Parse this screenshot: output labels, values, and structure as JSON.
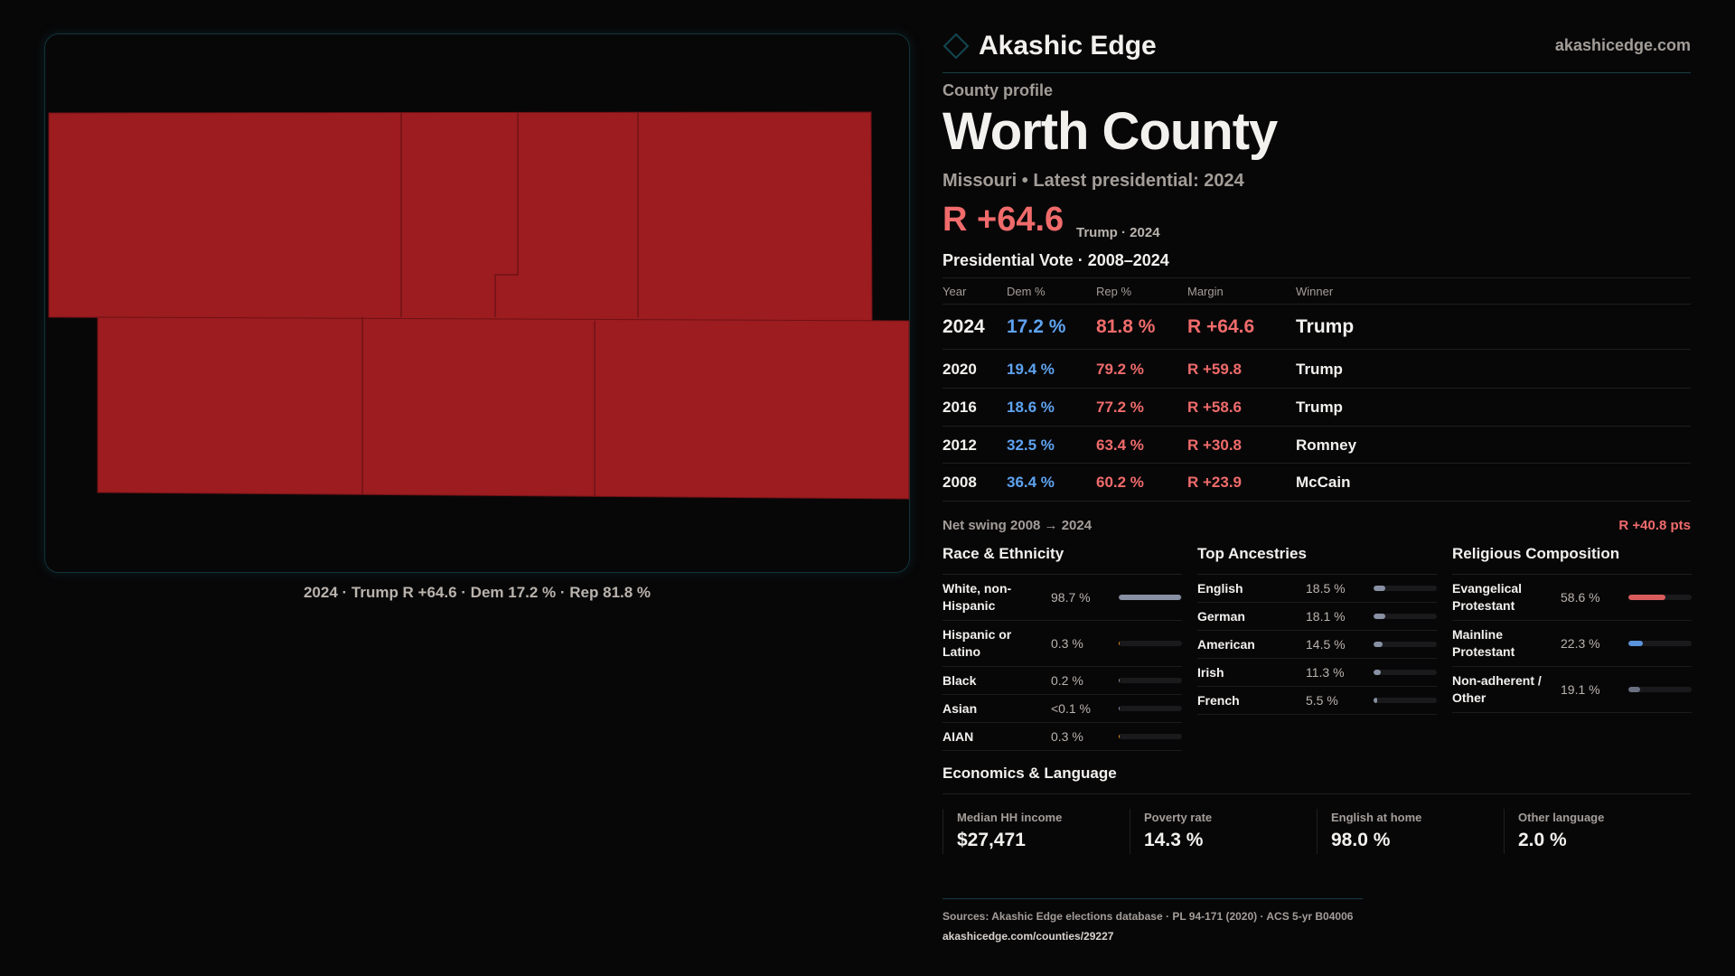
{
  "brand": {
    "name": "Akashic Edge",
    "site": "akashicedge.com",
    "accent": "#134650"
  },
  "map": {
    "fill": "#9c1c20",
    "caption": "2024 · Trump R +64.6 · Dem 17.2 % · Rep 81.8 %"
  },
  "profile": {
    "label": "County profile",
    "title": "Worth County",
    "subtitle": "Missouri • Latest presidential: 2024",
    "margin": "R +64.6",
    "winner": "Trump · 2024"
  },
  "vote": {
    "title": "Presidential Vote · 2008–2024",
    "headers": [
      "Year",
      "Dem %",
      "Rep %",
      "Margin",
      "Winner"
    ],
    "rows": [
      [
        "2024",
        "17.2 %",
        "81.8 %",
        "R +64.6",
        "Trump"
      ],
      [
        "2020",
        "19.4 %",
        "79.2 %",
        "R +59.8",
        "Trump"
      ],
      [
        "2016",
        "18.6 %",
        "77.2 %",
        "R +58.6",
        "Trump"
      ],
      [
        "2012",
        "32.5 %",
        "63.4 %",
        "R +30.8",
        "Romney"
      ],
      [
        "2008",
        "36.4 %",
        "60.2 %",
        "R +23.9",
        "McCain"
      ]
    ],
    "swing_label": "Net swing 2008 → 2024",
    "swing_value": "R +40.8 pts"
  },
  "race": {
    "title": "Race & Ethnicity",
    "items": [
      {
        "label": "White, non-Hispanic",
        "value": "98.7 %",
        "pct": 98.7,
        "color": "#8891a3"
      },
      {
        "label": "Hispanic or Latino",
        "value": "0.3 %",
        "pct": 0.3,
        "color": "#d98a1c"
      },
      {
        "label": "Black",
        "value": "0.2 %",
        "pct": 0.2,
        "color": "#8891a3"
      },
      {
        "label": "Asian",
        "value": "<0.1 %",
        "pct": 0.05,
        "color": "#8891a3"
      },
      {
        "label": "AIAN",
        "value": "0.3 %",
        "pct": 0.3,
        "color": "#d98a1c"
      }
    ]
  },
  "ancestry": {
    "title": "Top Ancestries",
    "items": [
      {
        "label": "English",
        "value": "18.5 %",
        "pct": 18.5,
        "color": "#8891a3"
      },
      {
        "label": "German",
        "value": "18.1 %",
        "pct": 18.1,
        "color": "#8891a3"
      },
      {
        "label": "American",
        "value": "14.5 %",
        "pct": 14.5,
        "color": "#8891a3"
      },
      {
        "label": "Irish",
        "value": "11.3 %",
        "pct": 11.3,
        "color": "#8891a3"
      },
      {
        "label": "French",
        "value": "5.5 %",
        "pct": 5.5,
        "color": "#8891a3"
      }
    ]
  },
  "religion": {
    "title": "Religious Composition",
    "items": [
      {
        "label": "Evangelical Protestant",
        "value": "58.6 %",
        "pct": 58.6,
        "color": "#d95c5c"
      },
      {
        "label": "Mainline Protestant",
        "value": "22.3 %",
        "pct": 22.3,
        "color": "#5b93dc"
      },
      {
        "label": "Non-adherent / Other",
        "value": "19.1 %",
        "pct": 19.1,
        "color": "#6a7080"
      }
    ]
  },
  "econ": {
    "title": "Economics & Language",
    "stats": [
      {
        "label": "Median HH income",
        "value": "$27,471"
      },
      {
        "label": "Poverty rate",
        "value": "14.3 %"
      },
      {
        "label": "English at home",
        "value": "98.0 %"
      },
      {
        "label": "Other language",
        "value": "2.0 %"
      }
    ]
  },
  "sources": {
    "text": "Sources: Akashic Edge elections database · PL 94-171 (2020) · ACS 5-yr B04006",
    "url": "akashicedge.com/counties/29227"
  }
}
